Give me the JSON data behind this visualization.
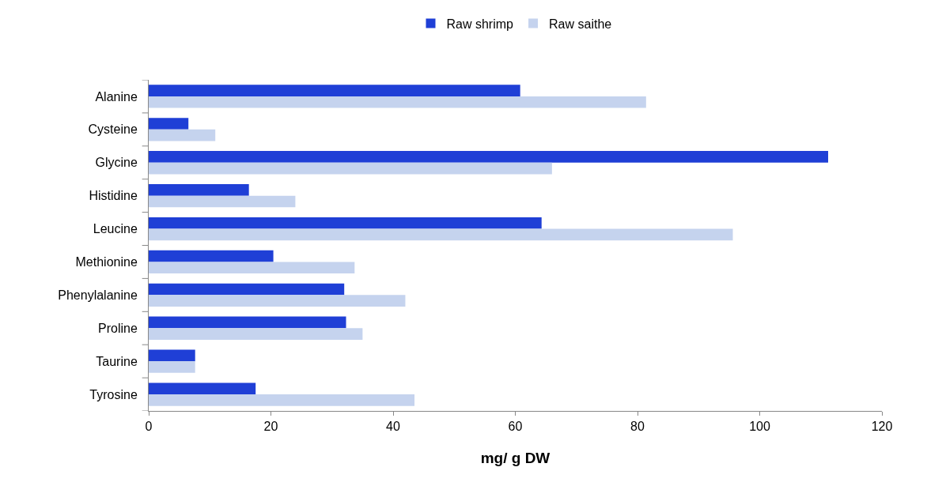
{
  "chart_data": {
    "type": "bar",
    "orientation": "horizontal",
    "xlabel": "mg/ g DW",
    "categories": [
      "Alanine",
      "Cysteine",
      "Glycine",
      "Histidine",
      "Leucine",
      "Methionine",
      "Phenylalanine",
      "Proline",
      "Taurine",
      "Tyrosine"
    ],
    "series": [
      {
        "name": "Raw shrimp",
        "color": "#1f3fd6",
        "values": [
          60.8,
          6.5,
          111.2,
          16.4,
          64.3,
          20.4,
          32,
          32.3,
          7.6,
          17.5
        ]
      },
      {
        "name": "Raw saithe",
        "color": "#c5d3ee",
        "values": [
          81.4,
          10.9,
          66,
          24,
          95.6,
          33.7,
          42,
          35,
          7.6,
          43.5
        ]
      }
    ],
    "xlim": [
      0,
      120
    ],
    "xticks": [
      0,
      20,
      40,
      60,
      80,
      100,
      120
    ],
    "legend": "top"
  }
}
